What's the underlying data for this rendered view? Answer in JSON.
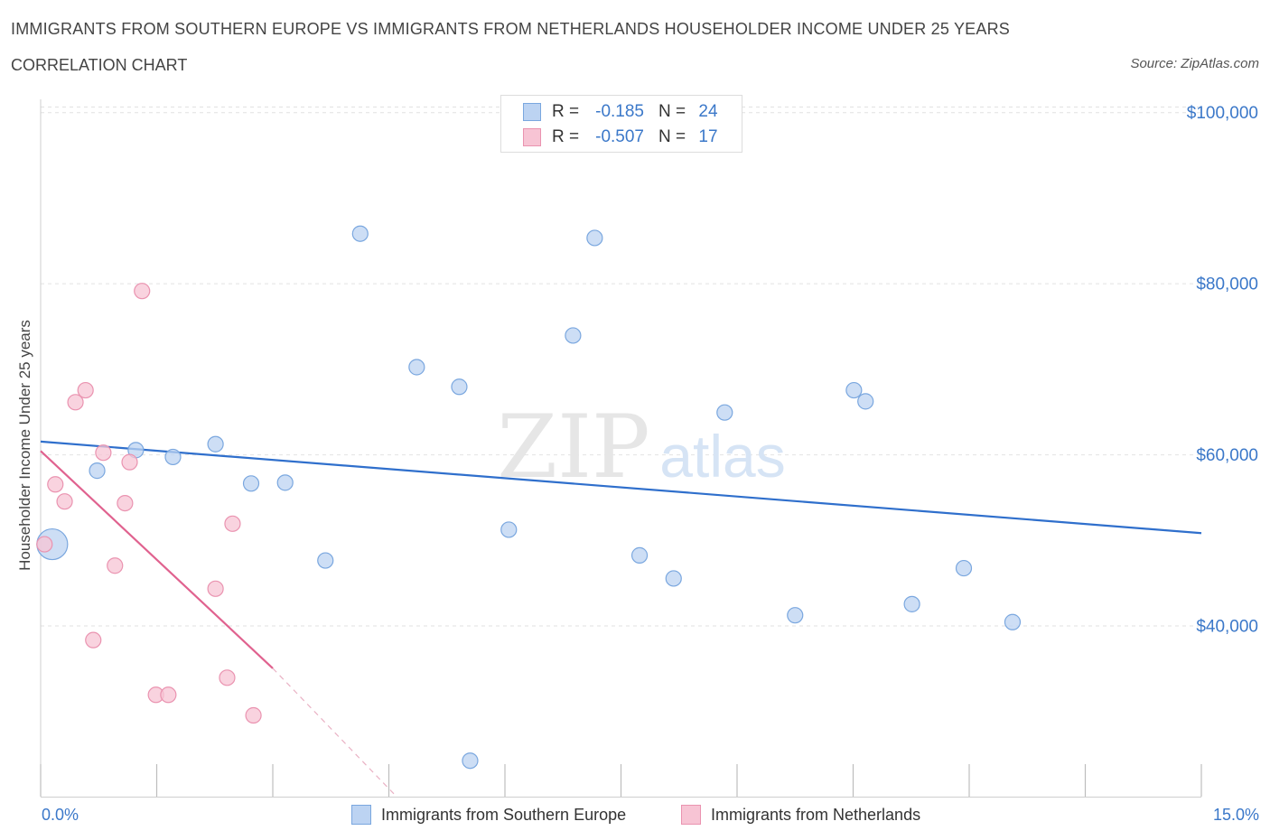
{
  "title": "IMMIGRANTS FROM SOUTHERN EUROPE VS IMMIGRANTS FROM NETHERLANDS HOUSEHOLDER INCOME UNDER 25 YEARS",
  "subtitle": "CORRELATION CHART",
  "source": "Source: ZipAtlas.com",
  "watermark": {
    "zip": "ZIP",
    "atlas": "atlas"
  },
  "legend": {
    "rows": [
      {
        "r_label": "R =",
        "r_value": "-0.185",
        "n_label": "N =",
        "n_value": "24"
      },
      {
        "r_label": "R =",
        "r_value": "-0.507",
        "n_label": "N =",
        "n_value": "17"
      }
    ]
  },
  "colors": {
    "blue_fill": "#bcd3f2",
    "blue_stroke": "#7aa7df",
    "blue_line": "#2f6fcc",
    "pink_fill": "#f7c4d4",
    "pink_stroke": "#ea93b0",
    "pink_line": "#e0628f",
    "axis_text": "#3b78c9"
  },
  "chart_data": {
    "type": "scatter",
    "title": "IMMIGRANTS FROM SOUTHERN EUROPE VS IMMIGRANTS FROM NETHERLANDS HOUSEHOLDER INCOME UNDER 25 YEARS",
    "xlabel": "",
    "ylabel": "Householder Income Under 25 years",
    "xlim": [
      0,
      15
    ],
    "ylim": [
      20000,
      101500
    ],
    "x_tick_labels": [
      "0.0%",
      "15.0%"
    ],
    "y_ticks": [
      40000,
      60000,
      80000,
      100000
    ],
    "y_tick_labels": [
      "$40,000",
      "$60,000",
      "$80,000",
      "$100,000"
    ],
    "grid": true,
    "series": [
      {
        "name": "Immigrants from Southern Europe",
        "color": "#bcd3f2",
        "points": [
          {
            "x": 0.15,
            "y": 49500,
            "big": true
          },
          {
            "x": 0.73,
            "y": 58100
          },
          {
            "x": 1.23,
            "y": 60500
          },
          {
            "x": 1.71,
            "y": 59700
          },
          {
            "x": 2.26,
            "y": 61200
          },
          {
            "x": 2.72,
            "y": 56600
          },
          {
            "x": 3.16,
            "y": 56700
          },
          {
            "x": 3.68,
            "y": 47600
          },
          {
            "x": 4.13,
            "y": 85800
          },
          {
            "x": 4.86,
            "y": 70200
          },
          {
            "x": 5.41,
            "y": 67900
          },
          {
            "x": 5.55,
            "y": 24200
          },
          {
            "x": 6.05,
            "y": 51200
          },
          {
            "x": 6.88,
            "y": 73900
          },
          {
            "x": 7.16,
            "y": 85300
          },
          {
            "x": 7.74,
            "y": 48200
          },
          {
            "x": 8.18,
            "y": 45500
          },
          {
            "x": 8.84,
            "y": 64900
          },
          {
            "x": 9.75,
            "y": 41200
          },
          {
            "x": 10.51,
            "y": 67500
          },
          {
            "x": 10.66,
            "y": 66200
          },
          {
            "x": 11.26,
            "y": 42500
          },
          {
            "x": 11.93,
            "y": 46700
          },
          {
            "x": 12.56,
            "y": 40400
          }
        ],
        "trend": {
          "x0": 0,
          "y0": 61500,
          "x1": 15,
          "y1": 50800
        }
      },
      {
        "name": "Immigrants from Netherlands",
        "color": "#f7c4d4",
        "points": [
          {
            "x": 0.05,
            "y": 49500
          },
          {
            "x": 0.19,
            "y": 56500
          },
          {
            "x": 0.31,
            "y": 54500
          },
          {
            "x": 0.45,
            "y": 66100
          },
          {
            "x": 0.58,
            "y": 67500
          },
          {
            "x": 0.68,
            "y": 38300
          },
          {
            "x": 0.81,
            "y": 60200
          },
          {
            "x": 0.96,
            "y": 47000
          },
          {
            "x": 1.09,
            "y": 54300
          },
          {
            "x": 1.15,
            "y": 59100
          },
          {
            "x": 1.31,
            "y": 79100
          },
          {
            "x": 1.49,
            "y": 31900
          },
          {
            "x": 1.65,
            "y": 31900
          },
          {
            "x": 2.26,
            "y": 44300
          },
          {
            "x": 2.41,
            "y": 33900
          },
          {
            "x": 2.48,
            "y": 51900
          },
          {
            "x": 2.75,
            "y": 29500
          }
        ],
        "trend": {
          "x0": 0,
          "y0": 60400,
          "x1": 3.0,
          "y1": 35000
        },
        "trend_extension": {
          "x0": 3.0,
          "y0": 35000,
          "x1": 4.6,
          "y1": 20000
        }
      }
    ]
  },
  "bottom_legend": {
    "items": [
      "Immigrants from Southern Europe",
      "Immigrants from Netherlands"
    ]
  }
}
